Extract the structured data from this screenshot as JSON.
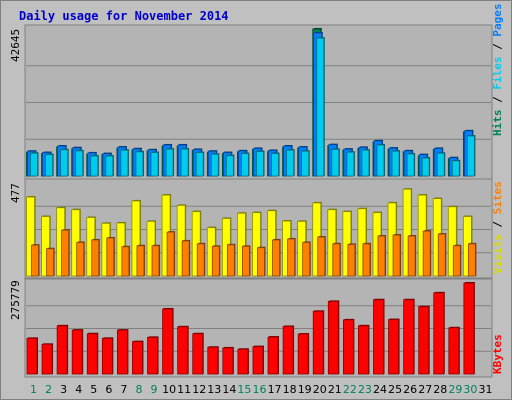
{
  "chart_data": {
    "type": "bar",
    "title": "Daily usage for November 2014",
    "colors": {
      "background": "#c0c0c0",
      "plot": "#b4b4b4",
      "pages": "#0080ff",
      "files": "#00ccee",
      "hits": "#00805c",
      "sites": "#ff8000",
      "visits": "#ffff00",
      "kbytes": "#ff0000",
      "weekday": "#000000",
      "weekend": "#00805c",
      "grid": "#808080"
    },
    "x": {
      "days": [
        "1",
        "2",
        "3",
        "4",
        "5",
        "6",
        "7",
        "8",
        "9",
        "10",
        "11",
        "12",
        "13",
        "14",
        "15",
        "16",
        "17",
        "18",
        "19",
        "20",
        "21",
        "22",
        "23",
        "24",
        "25",
        "26",
        "27",
        "28",
        "29",
        "30",
        "31"
      ],
      "weekend": [
        true,
        true,
        false,
        false,
        false,
        false,
        false,
        true,
        true,
        false,
        false,
        false,
        false,
        false,
        true,
        true,
        false,
        false,
        false,
        false,
        false,
        true,
        true,
        false,
        false,
        false,
        false,
        false,
        true,
        true,
        false
      ]
    },
    "panels": [
      {
        "id": "hits-files-pages",
        "ymax_label": "42645",
        "side_labels": [
          {
            "text": "Hits",
            "color": "#00805c"
          },
          {
            "text": " / ",
            "color": "#000000"
          },
          {
            "text": "Files",
            "color": "#00ccee"
          },
          {
            "text": " / ",
            "color": "#000000"
          },
          {
            "text": "Pages",
            "color": "#0080ff"
          }
        ],
        "ylim": [
          0,
          42645
        ],
        "series": [
          {
            "name": "Hits",
            "values": [
              6900,
              6500,
              8400,
              7900,
              6300,
              6200,
              8100,
              7600,
              7300,
              8700,
              8700,
              7400,
              6900,
              6500,
              7000,
              7700,
              7100,
              8400,
              8100,
              42645,
              8800,
              7500,
              8000,
              9900,
              7800,
              7000,
              5800,
              7700,
              5000,
              12800
            ]
          },
          {
            "name": "Pages",
            "values": [
              7200,
              6800,
              8700,
              8200,
              6700,
              6500,
              8400,
              7900,
              7600,
              9000,
              9000,
              7700,
              7200,
              6800,
              7300,
              8000,
              7400,
              8700,
              8400,
              41500,
              9100,
              7800,
              8300,
              10200,
              8100,
              7300,
              6200,
              8000,
              5300,
              13100
            ]
          },
          {
            "name": "Files",
            "values": [
              6600,
              6200,
              7600,
              7300,
              5800,
              5800,
              7500,
              7000,
              6800,
              7800,
              7800,
              6800,
              6300,
              5900,
              6500,
              7100,
              6500,
              7500,
              7200,
              40000,
              7700,
              6900,
              7500,
              9000,
              7200,
              6400,
              5200,
              6600,
              4400,
              11600
            ]
          }
        ]
      },
      {
        "id": "visits-sites",
        "ymax_label": "477",
        "side_labels": [
          {
            "text": "Visits",
            "color": "#d8d800"
          },
          {
            "text": " / ",
            "color": "#000000"
          },
          {
            "text": "Sites",
            "color": "#ff8000"
          }
        ],
        "ylim": [
          0,
          477
        ],
        "series": [
          {
            "name": "Visits",
            "values": [
              405,
              305,
              350,
              340,
              300,
              270,
              272,
              385,
              280,
              415,
              362,
              330,
              248,
              295,
              322,
              325,
              335,
              282,
              280,
              375,
              340,
              330,
              345,
              325,
              375,
              445,
              415,
              397,
              355,
              305
            ]
          },
          {
            "name": "Sites",
            "values": [
              158,
              140,
              235,
              172,
              185,
              195,
              150,
              155,
              155,
              225,
              180,
              165,
              152,
              160,
              152,
              145,
              185,
              190,
              172,
              200,
              165,
              162,
              165,
              205,
              210,
              205,
              230,
              215,
              155,
              165
            ]
          }
        ]
      },
      {
        "id": "kbytes",
        "ymax_label": "275779",
        "side_labels": [
          {
            "text": "KBytes",
            "color": "#ff0000"
          }
        ],
        "ylim": [
          0,
          275779
        ],
        "series": [
          {
            "name": "KBytes",
            "values": [
              108000,
              90000,
              146000,
              133000,
              122000,
              108000,
              133000,
              98000,
              111000,
              197000,
              143000,
              122000,
              81000,
              79000,
              75000,
              83000,
              112000,
              144000,
              121000,
              190000,
              220000,
              164000,
              146000,
              225000,
              165000,
              225000,
              204000,
              246000,
              140000,
              275779
            ]
          }
        ]
      }
    ]
  }
}
